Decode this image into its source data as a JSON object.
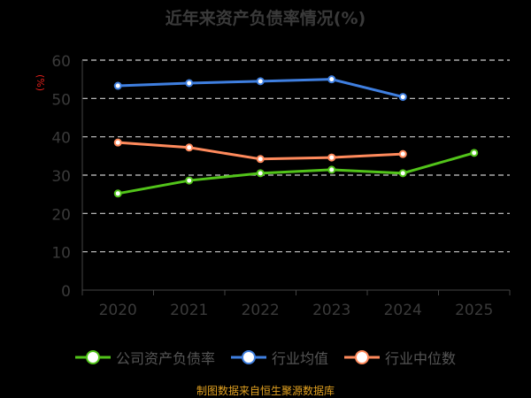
{
  "chart_data": {
    "type": "line",
    "title": "近年来资产负债率情况(%)",
    "ylabel": "(%)",
    "xlabel": "",
    "categories": [
      "2020",
      "2021",
      "2022",
      "2023",
      "2024",
      "2025"
    ],
    "ylim": [
      0,
      60
    ],
    "yticks": [
      "0",
      "10",
      "20",
      "30",
      "40",
      "50",
      "60"
    ],
    "grid": true,
    "legend_position": "bottom",
    "series": [
      {
        "name": "公司资产负债率",
        "color": "#52c41a",
        "values": [
          25.2,
          28.6,
          30.5,
          31.4,
          30.5,
          35.8
        ]
      },
      {
        "name": "行业均值",
        "color": "#3f7fe0",
        "values": [
          53.3,
          54.0,
          54.5,
          55.0,
          50.4,
          null
        ]
      },
      {
        "name": "行业中位数",
        "color": "#ff8a5c",
        "values": [
          38.5,
          37.2,
          34.2,
          34.6,
          35.5,
          null
        ]
      }
    ]
  },
  "footer": "制图数据来自恒生聚源数据库"
}
